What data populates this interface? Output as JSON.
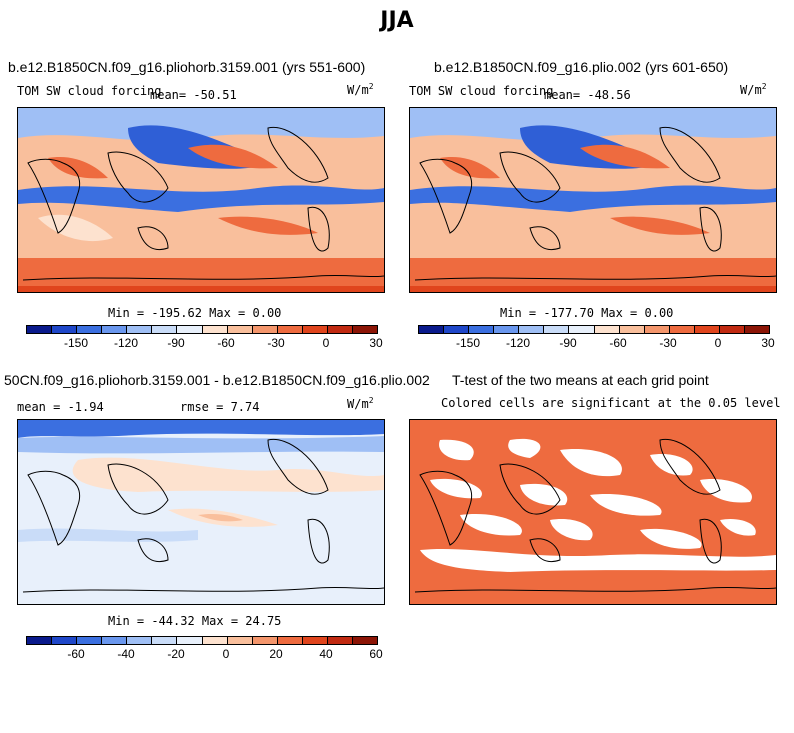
{
  "title": "JJA",
  "panels": [
    {
      "title": "b.e12.B1850CN.f09_g16.pliohorb.3159.001 (yrs 551-600)",
      "left_label": "TOM SW cloud forcing",
      "mean_label": "mean= -50.51",
      "units": "W/m",
      "units_sup": "2",
      "minmax": "Min = -195.62 Max =    0.00"
    },
    {
      "title": "b.e12.B1850CN.f09_g16.plio.002 (yrs 601-650)",
      "left_label": "TOM SW cloud forcing",
      "mean_label": "mean= -48.56",
      "units": "W/m",
      "units_sup": "2",
      "minmax": "Min = -177.70 Max =    0.00"
    },
    {
      "title": "50CN.f09_g16.pliohorb.3159.001 - b.e12.B1850CN.f09_g16.plio.002",
      "mean_label": "mean =  -1.94",
      "rmse_label": "rmse =   7.74",
      "units": "W/m",
      "units_sup": "2",
      "minmax": "Min = -44.32 Max =  24.75"
    },
    {
      "title": "T-test of the two means at each grid point",
      "subtitle": "Colored cells are significant at the 0.05 level"
    }
  ],
  "colorbars": [
    {
      "colors": [
        "#0a1a8c",
        "#1f47c9",
        "#3b6fe0",
        "#6a97ee",
        "#9fbff5",
        "#c9dcf8",
        "#e8f0fb",
        "#fde2cf",
        "#f9bf9c",
        "#f4966c",
        "#ee6b3f",
        "#e0451d",
        "#c12a11",
        "#8c1506"
      ],
      "ticks": [
        "-150",
        "-120",
        "-90",
        "-60",
        "-30",
        "0",
        "30"
      ]
    },
    {
      "colors": [
        "#0a1a8c",
        "#1f47c9",
        "#3b6fe0",
        "#6a97ee",
        "#9fbff5",
        "#c9dcf8",
        "#e8f0fb",
        "#fde2cf",
        "#f9bf9c",
        "#f4966c",
        "#ee6b3f",
        "#e0451d",
        "#c12a11",
        "#8c1506"
      ],
      "ticks": [
        "-150",
        "-120",
        "-90",
        "-60",
        "-30",
        "0",
        "30"
      ]
    },
    {
      "colors": [
        "#0a1a8c",
        "#1f47c9",
        "#3b6fe0",
        "#6a97ee",
        "#9fbff5",
        "#c9dcf8",
        "#e8f0fb",
        "#fde2cf",
        "#f9bf9c",
        "#f4966c",
        "#ee6b3f",
        "#e0451d",
        "#c12a11",
        "#8c1506"
      ],
      "ticks": [
        "-60",
        "-40",
        "-20",
        "0",
        "20",
        "40",
        "60"
      ]
    }
  ],
  "map_colors": {
    "strong_negative": "#2f5fd6",
    "negative": "#7da7ef",
    "weak_negative": "#c9dcf8",
    "neutral": "#e8f0fb",
    "weak_positive": "#fde2cf",
    "positive": "#f4966c",
    "strong_positive": "#ee6b3f",
    "significant": "#ee6b3f"
  }
}
